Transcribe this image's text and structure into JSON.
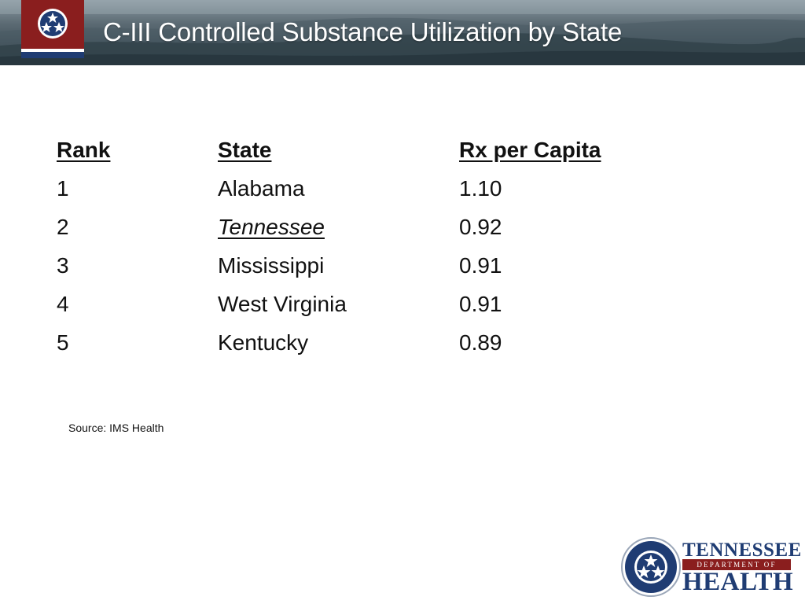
{
  "slide": {
    "title": "C-III Controlled Substance Utilization by State"
  },
  "table": {
    "headers": {
      "rank": "Rank",
      "state": "State",
      "rx": "Rx per Capita"
    },
    "rows": [
      {
        "rank": "1",
        "state": "Alabama",
        "rx": "1.10"
      },
      {
        "rank": "2",
        "state": "Tennessee",
        "rx": "0.92"
      },
      {
        "rank": "3",
        "state": "Mississippi",
        "rx": "0.91"
      },
      {
        "rank": "4",
        "state": "West Virginia",
        "rx": "0.91"
      },
      {
        "rank": "5",
        "state": "Kentucky",
        "rx": "0.89"
      }
    ],
    "highlighted_state": "Tennessee"
  },
  "source_note": "Source: IMS Health",
  "logo": {
    "name": "TENNESSEE",
    "department": "DEPARTMENT OF",
    "agency": "HEALTH",
    "icon": "tri-star-seal-icon"
  },
  "colors": {
    "banner_dark": "#33434b",
    "badge_red": "#8a1e1e",
    "logo_blue": "#1f3c73"
  }
}
